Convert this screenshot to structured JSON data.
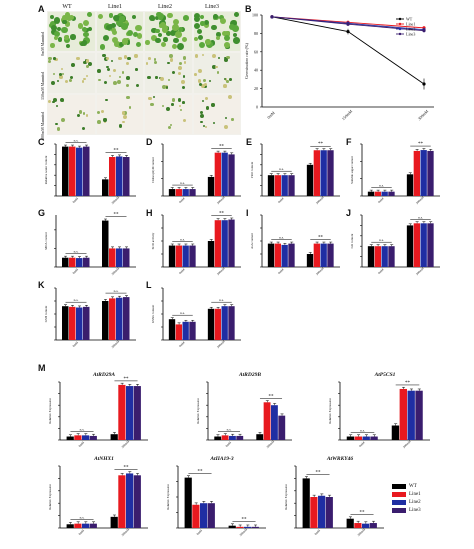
{
  "panel_A": {
    "label": "A",
    "columns": [
      "WT",
      "Line1",
      "Line2",
      "Line3"
    ],
    "rows": [
      "0mM Mannitol",
      "150mM Mannitol",
      "300mM Mannitol"
    ]
  },
  "panels": {
    "B": "B",
    "C": "C",
    "D": "D",
    "E": "E",
    "F": "F",
    "G": "G",
    "H": "H",
    "I": "I",
    "J": "J",
    "K": "K",
    "L": "L",
    "M": "M"
  },
  "legend": {
    "items": [
      {
        "name": "WT",
        "color": "#000000"
      },
      {
        "name": "Line1",
        "color": "#e8191f"
      },
      {
        "name": "Line2",
        "color": "#1f2ea3"
      },
      {
        "name": "Line3",
        "color": "#3a1d6e"
      }
    ]
  },
  "chart_data": [
    {
      "id": "B",
      "type": "line",
      "x": [
        "0mM",
        "150mM",
        "300mM"
      ],
      "ylabel": "Germination rate (%)",
      "ylim": [
        0,
        100
      ],
      "yticks": [
        0,
        20,
        40,
        60,
        80,
        100
      ],
      "series": [
        {
          "name": "WT",
          "values": [
            98,
            82,
            25
          ],
          "err": [
            2,
            3,
            6
          ]
        },
        {
          "name": "Line1",
          "values": [
            98,
            92,
            86
          ],
          "err": [
            1,
            2,
            2
          ]
        },
        {
          "name": "Line2",
          "values": [
            98,
            91,
            84
          ],
          "err": [
            1,
            2,
            2
          ]
        },
        {
          "name": "Line3",
          "values": [
            98,
            90,
            83
          ],
          "err": [
            1,
            2,
            2
          ]
        }
      ]
    },
    {
      "id": "C",
      "type": "bar",
      "categories": [
        "0mM",
        "300mM"
      ],
      "ylabel": "Relative water content",
      "ylim": [
        0,
        100
      ],
      "series": [
        {
          "name": "WT",
          "values": [
            95,
            32
          ]
        },
        {
          "name": "Line1",
          "values": [
            95,
            75
          ]
        },
        {
          "name": "Line2",
          "values": [
            93,
            76
          ]
        },
        {
          "name": "Line3",
          "values": [
            95,
            75
          ]
        }
      ],
      "sig": [
        "n.s.",
        "**"
      ]
    },
    {
      "id": "D",
      "type": "bar",
      "categories": [
        "0mM",
        "300mM"
      ],
      "ylabel": "Chlorophyll content",
      "ylim": [
        0,
        3
      ],
      "series": [
        {
          "name": "WT",
          "values": [
            0.4,
            1.1
          ]
        },
        {
          "name": "Line1",
          "values": [
            0.4,
            2.5
          ]
        },
        {
          "name": "Line2",
          "values": [
            0.4,
            2.5
          ]
        },
        {
          "name": "Line3",
          "values": [
            0.4,
            2.4
          ]
        }
      ],
      "sig": [
        "n.s.",
        "**"
      ]
    },
    {
      "id": "E",
      "type": "bar",
      "categories": [
        "0mM",
        "300mM"
      ],
      "ylabel": "PRO content",
      "ylim": [
        0,
        100
      ],
      "series": [
        {
          "name": "WT",
          "values": [
            40,
            60
          ]
        },
        {
          "name": "Line1",
          "values": [
            40,
            88
          ]
        },
        {
          "name": "Line2",
          "values": [
            40,
            88
          ]
        },
        {
          "name": "Line3",
          "values": [
            40,
            88
          ]
        }
      ],
      "sig": [
        "n.s.",
        "**"
      ]
    },
    {
      "id": "F",
      "type": "bar",
      "categories": [
        "0mM",
        "300mM"
      ],
      "ylabel": "Soluble sugar content",
      "ylim": [
        0,
        60
      ],
      "series": [
        {
          "name": "WT",
          "values": [
            5,
            25
          ]
        },
        {
          "name": "Line1",
          "values": [
            5,
            52
          ]
        },
        {
          "name": "Line2",
          "values": [
            5,
            53
          ]
        },
        {
          "name": "Line3",
          "values": [
            5,
            52
          ]
        }
      ],
      "sig": [
        "n.s.",
        "**"
      ]
    },
    {
      "id": "G",
      "type": "bar",
      "categories": [
        "0mM",
        "300mM"
      ],
      "ylabel": "MDA content",
      "ylim": [
        0,
        14
      ],
      "series": [
        {
          "name": "WT",
          "values": [
            2.5,
            12.5
          ]
        },
        {
          "name": "Line1",
          "values": [
            2.5,
            5
          ]
        },
        {
          "name": "Line2",
          "values": [
            2.4,
            5
          ]
        },
        {
          "name": "Line3",
          "values": [
            2.5,
            5
          ]
        }
      ],
      "sig": [
        "n.s.",
        "**"
      ]
    },
    {
      "id": "H",
      "type": "bar",
      "categories": [
        "0mM",
        "300mM"
      ],
      "ylabel": "SOD activity",
      "ylim": [
        0,
        800
      ],
      "series": [
        {
          "name": "WT",
          "values": [
            330,
            400
          ]
        },
        {
          "name": "Line1",
          "values": [
            330,
            720
          ]
        },
        {
          "name": "Line2",
          "values": [
            330,
            720
          ]
        },
        {
          "name": "Line3",
          "values": [
            330,
            730
          ]
        }
      ],
      "sig": [
        "n.s.",
        "**"
      ]
    },
    {
      "id": "I",
      "type": "bar",
      "categories": [
        "0mM",
        "300mM"
      ],
      "ylabel": "AsA content",
      "ylim": [
        0,
        40
      ],
      "series": [
        {
          "name": "WT",
          "values": [
            18,
            10
          ]
        },
        {
          "name": "Line1",
          "values": [
            18,
            18
          ]
        },
        {
          "name": "Line2",
          "values": [
            17,
            18
          ]
        },
        {
          "name": "Line3",
          "values": [
            18,
            18
          ]
        }
      ],
      "sig": [
        "n.s.",
        "**"
      ]
    },
    {
      "id": "J",
      "type": "bar",
      "categories": [
        "0mM",
        "300mM"
      ],
      "ylabel": "GR content",
      "ylim": [
        0,
        25
      ],
      "series": [
        {
          "name": "WT",
          "values": [
            10,
            20
          ]
        },
        {
          "name": "Line1",
          "values": [
            10,
            21
          ]
        },
        {
          "name": "Line2",
          "values": [
            10,
            21
          ]
        },
        {
          "name": "Line3",
          "values": [
            10,
            21
          ]
        }
      ],
      "sig": [
        "n.s.",
        "n.s."
      ]
    },
    {
      "id": "K",
      "type": "bar",
      "categories": [
        "0mM",
        "300mM"
      ],
      "ylabel": "GSH content",
      "ylim": [
        0,
        800
      ],
      "series": [
        {
          "name": "WT",
          "values": [
            520,
            600
          ]
        },
        {
          "name": "Line1",
          "values": [
            510,
            640
          ]
        },
        {
          "name": "Line2",
          "values": [
            500,
            650
          ]
        },
        {
          "name": "Line3",
          "values": [
            510,
            660
          ]
        }
      ],
      "sig": [
        "n.s.",
        "n.s."
      ]
    },
    {
      "id": "L",
      "type": "bar",
      "categories": [
        "0mM",
        "300mM"
      ],
      "ylabel": "GSSG content",
      "ylim": [
        0,
        20
      ],
      "series": [
        {
          "name": "WT",
          "values": [
            8,
            12
          ]
        },
        {
          "name": "Line1",
          "values": [
            6,
            12
          ]
        },
        {
          "name": "Line2",
          "values": [
            7,
            13
          ]
        },
        {
          "name": "Line3",
          "values": [
            7,
            13
          ]
        }
      ],
      "sig": [
        "n.s.",
        "n.s."
      ]
    },
    {
      "id": "M1",
      "type": "bar",
      "title": "AtRD29A",
      "categories": [
        "0mM",
        "300mM"
      ],
      "ylabel": "Relative Expression",
      "ylim": [
        0,
        10
      ],
      "series": [
        {
          "name": "WT",
          "values": [
            0.6,
            1.0
          ]
        },
        {
          "name": "Line1",
          "values": [
            0.8,
            9.5
          ]
        },
        {
          "name": "Line2",
          "values": [
            0.8,
            9.3
          ]
        },
        {
          "name": "Line3",
          "values": [
            0.7,
            9.3
          ]
        }
      ],
      "sig": [
        "n.s.",
        "**"
      ]
    },
    {
      "id": "M2",
      "type": "bar",
      "title": "AtRD29B",
      "categories": [
        "0mM",
        "300mM"
      ],
      "ylabel": "Relative Expression",
      "ylim": [
        0,
        10
      ],
      "series": [
        {
          "name": "WT",
          "values": [
            0.6,
            1.0
          ]
        },
        {
          "name": "Line1",
          "values": [
            0.8,
            6.5
          ]
        },
        {
          "name": "Line2",
          "values": [
            0.7,
            6.0
          ]
        },
        {
          "name": "Line3",
          "values": [
            0.7,
            4.2
          ]
        }
      ],
      "sig": [
        "n.s.",
        "**"
      ]
    },
    {
      "id": "M3",
      "type": "bar",
      "title": "AtP5CS1",
      "categories": [
        "0mM",
        "300mM"
      ],
      "ylabel": "Relative Expression",
      "ylim": [
        0,
        10
      ],
      "series": [
        {
          "name": "WT",
          "values": [
            0.6,
            2.5
          ]
        },
        {
          "name": "Line1",
          "values": [
            0.6,
            8.8
          ]
        },
        {
          "name": "Line2",
          "values": [
            0.6,
            8.5
          ]
        },
        {
          "name": "Line3",
          "values": [
            0.6,
            8.5
          ]
        }
      ],
      "sig": [
        "n.s.",
        "**"
      ]
    },
    {
      "id": "M4",
      "type": "bar",
      "title": "AtNHX1",
      "categories": [
        "0mM",
        "300mM"
      ],
      "ylabel": "Relative Expression",
      "ylim": [
        0,
        10
      ],
      "series": [
        {
          "name": "WT",
          "values": [
            0.6,
            1.8
          ]
        },
        {
          "name": "Line1",
          "values": [
            0.7,
            8.5
          ]
        },
        {
          "name": "Line2",
          "values": [
            0.7,
            8.8
          ]
        },
        {
          "name": "Line3",
          "values": [
            0.7,
            8.5
          ]
        }
      ],
      "sig": [
        "n.s.",
        "**"
      ]
    },
    {
      "id": "M5",
      "type": "bar",
      "title": "AtIIA19-3",
      "categories": [
        "0mM",
        "300mM"
      ],
      "ylabel": "Relative Expression",
      "ylim": [
        0,
        8
      ],
      "series": [
        {
          "name": "WT",
          "values": [
            6.5,
            0.3
          ]
        },
        {
          "name": "Line1",
          "values": [
            3.0,
            0.15
          ]
        },
        {
          "name": "Line2",
          "values": [
            3.2,
            0.15
          ]
        },
        {
          "name": "Line3",
          "values": [
            3.2,
            0.15
          ]
        }
      ],
      "sig": [
        "**",
        "**"
      ]
    },
    {
      "id": "M6",
      "type": "bar",
      "title": "AtWRKY46",
      "categories": [
        "0mM",
        "300mM"
      ],
      "ylabel": "Relative Expression",
      "ylim": [
        0,
        10
      ],
      "series": [
        {
          "name": "WT",
          "values": [
            8.0,
            1.5
          ]
        },
        {
          "name": "Line1",
          "values": [
            5.0,
            0.8
          ]
        },
        {
          "name": "Line2",
          "values": [
            5.2,
            0.7
          ]
        },
        {
          "name": "Line3",
          "values": [
            5.0,
            0.8
          ]
        }
      ],
      "sig": [
        "**",
        "**"
      ]
    }
  ]
}
